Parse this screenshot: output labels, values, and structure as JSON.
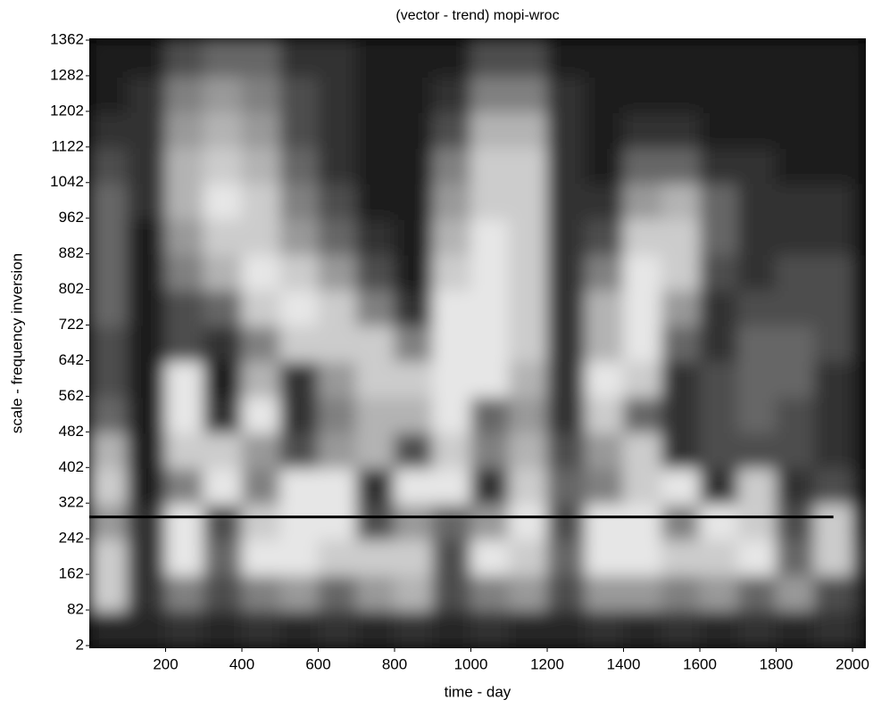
{
  "chart_data": {
    "type": "heatmap",
    "title": "(vector  - trend)  mopi-wroc",
    "x_label": "time - day",
    "y_label": "scale -  frequency inversion",
    "xlim": [
      0,
      2035
    ],
    "ylim": [
      -4,
      1366
    ],
    "xticks": [
      200,
      400,
      600,
      800,
      1000,
      1200,
      1400,
      1600,
      1800,
      2000
    ],
    "yticks": [
      2,
      82,
      162,
      242,
      322,
      402,
      482,
      562,
      642,
      722,
      802,
      882,
      962,
      1042,
      1122,
      1202,
      1282,
      1362
    ],
    "grid": false,
    "colormap": "gray",
    "x_bins": [
      0,
      100,
      200,
      300,
      400,
      500,
      600,
      700,
      800,
      900,
      1000,
      1100,
      1200,
      1300,
      1400,
      1500,
      1600,
      1700,
      1800,
      1900,
      2000,
      2035
    ],
    "y_bins": [
      -4,
      80,
      160,
      240,
      320,
      400,
      480,
      560,
      640,
      720,
      800,
      880,
      960,
      1040,
      1120,
      1200,
      1280,
      1366
    ],
    "z": [
      [
        0.15,
        0.15,
        0.2,
        0.15,
        0.2,
        0.15,
        0.2,
        0.15,
        0.2,
        0.15,
        0.2,
        0.15,
        0.15,
        0.2,
        0.15,
        0.2,
        0.15,
        0.2,
        0.15,
        0.2,
        0.15
      ],
      [
        0.8,
        0.2,
        0.5,
        0.3,
        0.5,
        0.6,
        0.4,
        0.6,
        0.7,
        0.3,
        0.5,
        0.6,
        0.3,
        0.6,
        0.6,
        0.5,
        0.6,
        0.4,
        0.6,
        0.3,
        0.2
      ],
      [
        0.8,
        0.2,
        0.9,
        0.4,
        0.9,
        0.9,
        0.8,
        0.8,
        0.8,
        0.3,
        0.9,
        0.8,
        0.4,
        0.9,
        0.9,
        0.8,
        0.8,
        0.9,
        0.4,
        0.8,
        0.3
      ],
      [
        0.6,
        0.2,
        0.9,
        0.3,
        0.8,
        0.9,
        0.9,
        0.3,
        0.6,
        0.4,
        0.6,
        0.9,
        0.3,
        0.9,
        0.9,
        0.5,
        0.9,
        0.8,
        0.3,
        0.8,
        0.2
      ],
      [
        0.8,
        0.1,
        0.5,
        0.9,
        0.5,
        0.9,
        0.9,
        0.2,
        0.9,
        0.9,
        0.2,
        0.8,
        0.4,
        0.5,
        0.8,
        0.9,
        0.2,
        0.8,
        0.2,
        0.3,
        0.1
      ],
      [
        0.7,
        0.1,
        0.8,
        0.8,
        0.6,
        0.3,
        0.6,
        0.7,
        0.3,
        0.8,
        0.5,
        0.7,
        0.3,
        0.6,
        0.8,
        0.2,
        0.3,
        0.3,
        0.3,
        0.2,
        0.1
      ],
      [
        0.4,
        0.1,
        0.9,
        0.2,
        0.9,
        0.2,
        0.5,
        0.7,
        0.7,
        0.9,
        0.4,
        0.6,
        0.2,
        0.8,
        0.4,
        0.2,
        0.3,
        0.4,
        0.3,
        0.2,
        0.1
      ],
      [
        0.3,
        0.1,
        0.9,
        0.1,
        0.7,
        0.2,
        0.6,
        0.8,
        0.8,
        0.9,
        0.9,
        0.7,
        0.2,
        0.9,
        0.8,
        0.2,
        0.3,
        0.4,
        0.4,
        0.2,
        0.1
      ],
      [
        0.3,
        0.1,
        0.3,
        0.2,
        0.5,
        0.8,
        0.8,
        0.8,
        0.5,
        0.9,
        0.9,
        0.8,
        0.2,
        0.7,
        0.9,
        0.4,
        0.2,
        0.4,
        0.4,
        0.3,
        0.1
      ],
      [
        0.4,
        0.1,
        0.3,
        0.4,
        0.8,
        0.9,
        0.8,
        0.5,
        0.2,
        0.9,
        0.9,
        0.8,
        0.2,
        0.7,
        0.9,
        0.6,
        0.2,
        0.3,
        0.3,
        0.3,
        0.1
      ],
      [
        0.4,
        0.1,
        0.5,
        0.7,
        0.9,
        0.8,
        0.6,
        0.3,
        0.1,
        0.8,
        0.9,
        0.8,
        0.2,
        0.5,
        0.9,
        0.8,
        0.3,
        0.2,
        0.3,
        0.3,
        0.1
      ],
      [
        0.4,
        0.1,
        0.6,
        0.8,
        0.8,
        0.6,
        0.4,
        0.2,
        0.1,
        0.7,
        0.9,
        0.8,
        0.2,
        0.3,
        0.8,
        0.8,
        0.4,
        0.2,
        0.2,
        0.2,
        0.1
      ],
      [
        0.4,
        0.2,
        0.7,
        0.9,
        0.8,
        0.5,
        0.3,
        0.1,
        0.1,
        0.6,
        0.8,
        0.8,
        0.2,
        0.2,
        0.6,
        0.7,
        0.4,
        0.2,
        0.2,
        0.2,
        0.1
      ],
      [
        0.3,
        0.2,
        0.7,
        0.8,
        0.7,
        0.4,
        0.2,
        0.1,
        0.1,
        0.5,
        0.8,
        0.8,
        0.2,
        0.1,
        0.4,
        0.4,
        0.2,
        0.2,
        0.1,
        0.1,
        0.1
      ],
      [
        0.2,
        0.2,
        0.6,
        0.7,
        0.6,
        0.3,
        0.2,
        0.1,
        0.1,
        0.3,
        0.7,
        0.7,
        0.2,
        0.1,
        0.2,
        0.2,
        0.1,
        0.1,
        0.1,
        0.1,
        0.1
      ],
      [
        0.1,
        0.2,
        0.5,
        0.6,
        0.5,
        0.3,
        0.2,
        0.1,
        0.1,
        0.2,
        0.5,
        0.5,
        0.2,
        0.1,
        0.1,
        0.1,
        0.1,
        0.1,
        0.1,
        0.1,
        0.1
      ],
      [
        0.1,
        0.1,
        0.3,
        0.4,
        0.4,
        0.2,
        0.2,
        0.1,
        0.1,
        0.1,
        0.3,
        0.3,
        0.1,
        0.1,
        0.1,
        0.1,
        0.1,
        0.1,
        0.1,
        0.1,
        0.1
      ]
    ],
    "reference_line": {
      "y": 291,
      "x_start": 0,
      "x_end": 1950,
      "color": "#000000"
    }
  }
}
